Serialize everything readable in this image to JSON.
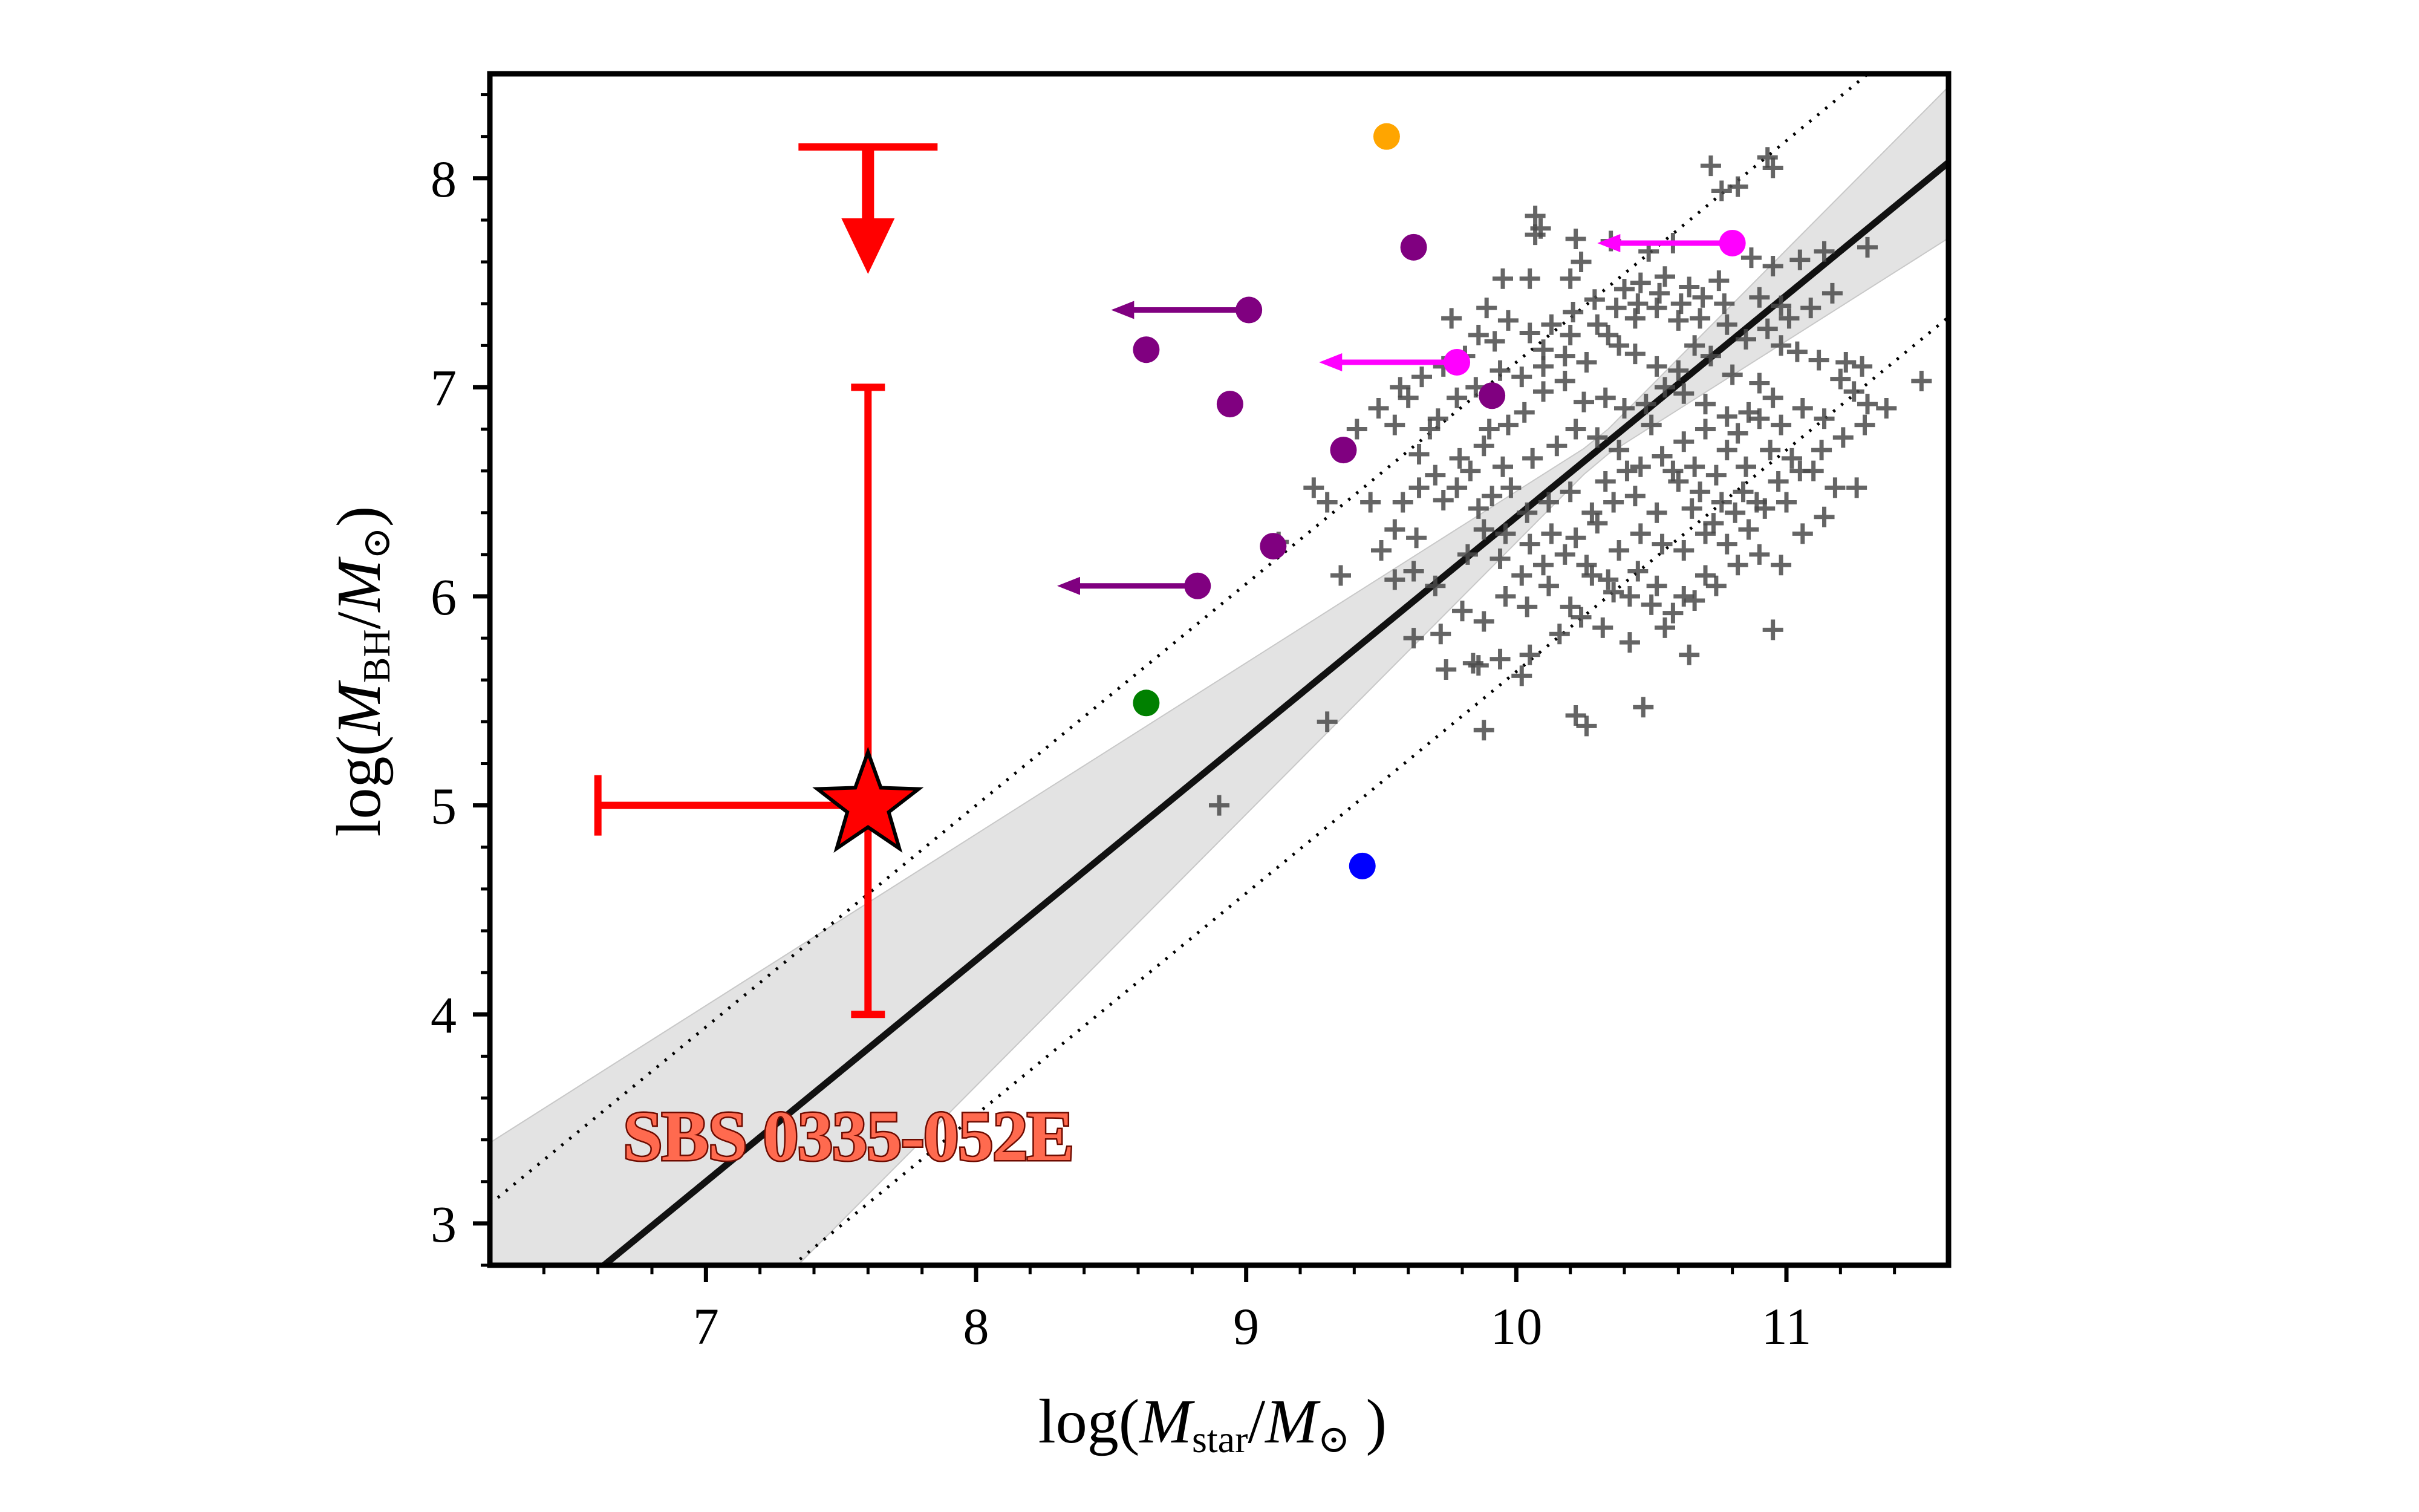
{
  "chart_data": {
    "type": "scatter",
    "xlabel": "log(M_star/M_⊙)",
    "xlabel_parts": {
      "prefix": "log(",
      "var": "M",
      "sub": "star",
      "slash": "/",
      "var2": "M",
      "sun": "⊙",
      "suffix": " )"
    },
    "ylabel": "log(M_BH/M_⊙)",
    "ylabel_parts": {
      "prefix": "log(",
      "var": "M",
      "sub": "BH",
      "slash": "/",
      "var2": "M",
      "sun": "⊙",
      "suffix": ")"
    },
    "xlim": [
      6.2,
      11.6
    ],
    "ylim": [
      2.8,
      8.5
    ],
    "xticks": [
      7,
      8,
      9,
      10,
      11
    ],
    "xtick_labels": [
      "7",
      "8",
      "9",
      "10",
      "11"
    ],
    "yticks": [
      3,
      4,
      5,
      6,
      7,
      8
    ],
    "ytick_labels": [
      "3",
      "4",
      "5",
      "6",
      "7",
      "8"
    ],
    "grid": false,
    "relation": {
      "slope": 1.06,
      "intercept": -4.22,
      "scatter_offset": 0.74,
      "band_pivot": 10.3,
      "band_min": 0.05,
      "band_scale": 0.24
    },
    "target": {
      "label": "SBS 0335-052E",
      "x": 7.6,
      "y": 5.0,
      "x_err_low": 1.0,
      "x_err_high": 0.0,
      "y_low": 4.0,
      "y_high": 7.0,
      "upper_limit_y": 8.15,
      "color": "#ff0000"
    },
    "highlighted_points": [
      {
        "x": 9.52,
        "y": 8.2,
        "color": "#ffa500",
        "upper_limit_x": false
      },
      {
        "x": 9.62,
        "y": 7.67,
        "color": "#800080",
        "upper_limit_x": false
      },
      {
        "x": 9.01,
        "y": 7.37,
        "color": "#800080",
        "upper_limit_x": true,
        "arrow_to": 8.5
      },
      {
        "x": 8.63,
        "y": 7.18,
        "color": "#800080",
        "upper_limit_x": false
      },
      {
        "x": 8.94,
        "y": 6.92,
        "color": "#800080",
        "upper_limit_x": false
      },
      {
        "x": 9.91,
        "y": 6.96,
        "color": "#800080",
        "upper_limit_x": false
      },
      {
        "x": 9.36,
        "y": 6.7,
        "color": "#800080",
        "upper_limit_x": false
      },
      {
        "x": 9.1,
        "y": 6.24,
        "color": "#800080",
        "upper_limit_x": false
      },
      {
        "x": 8.82,
        "y": 6.05,
        "color": "#800080",
        "upper_limit_x": true,
        "arrow_to": 8.3
      },
      {
        "x": 9.78,
        "y": 7.12,
        "color": "#ff00ff",
        "upper_limit_x": true,
        "arrow_to": 9.27
      },
      {
        "x": 10.8,
        "y": 7.69,
        "color": "#ff00ff",
        "upper_limit_x": true,
        "arrow_to": 10.3
      },
      {
        "x": 8.63,
        "y": 5.49,
        "color": "#008000",
        "upper_limit_x": false
      },
      {
        "x": 9.43,
        "y": 4.71,
        "color": "#0000ff",
        "upper_limit_x": false
      }
    ],
    "comparison_sample": [
      [
        10.72,
        8.06
      ],
      [
        10.93,
        8.1
      ],
      [
        10.95,
        8.05
      ],
      [
        10.82,
        7.96
      ],
      [
        10.76,
        7.94
      ],
      [
        10.07,
        7.82
      ],
      [
        10.07,
        7.73
      ],
      [
        10.09,
        7.76
      ],
      [
        10.22,
        7.71
      ],
      [
        10.35,
        7.7
      ],
      [
        10.24,
        7.6
      ],
      [
        10.49,
        7.65
      ],
      [
        10.58,
        7.69
      ],
      [
        10.55,
        7.53
      ],
      [
        10.64,
        7.48
      ],
      [
        10.75,
        7.51
      ],
      [
        10.87,
        7.62
      ],
      [
        10.95,
        7.58
      ],
      [
        11.05,
        7.61
      ],
      [
        11.14,
        7.65
      ],
      [
        11.3,
        7.67
      ],
      [
        10.9,
        7.43
      ],
      [
        10.98,
        7.39
      ],
      [
        10.78,
        7.3
      ],
      [
        10.68,
        7.33
      ],
      [
        10.46,
        7.5
      ],
      [
        10.4,
        7.47
      ],
      [
        10.2,
        7.52
      ],
      [
        9.95,
        7.52
      ],
      [
        10.05,
        7.52
      ],
      [
        9.76,
        7.33
      ],
      [
        9.86,
        7.25
      ],
      [
        9.92,
        7.22
      ],
      [
        10.1,
        7.18
      ],
      [
        10.2,
        7.25
      ],
      [
        10.3,
        7.3
      ],
      [
        10.38,
        7.2
      ],
      [
        10.44,
        7.16
      ],
      [
        10.52,
        7.1
      ],
      [
        10.6,
        7.08
      ],
      [
        10.66,
        7.2
      ],
      [
        10.72,
        7.15
      ],
      [
        10.8,
        7.06
      ],
      [
        10.9,
        7.02
      ],
      [
        10.98,
        7.2
      ],
      [
        11.04,
        7.17
      ],
      [
        11.12,
        7.13
      ],
      [
        11.2,
        7.04
      ],
      [
        11.25,
        6.98
      ],
      [
        11.5,
        7.03
      ],
      [
        11.3,
        6.92
      ],
      [
        10.95,
        6.95
      ],
      [
        10.86,
        6.88
      ],
      [
        10.78,
        6.86
      ],
      [
        10.7,
        6.92
      ],
      [
        10.62,
        6.97
      ],
      [
        10.55,
        7.0
      ],
      [
        10.48,
        6.92
      ],
      [
        10.4,
        6.9
      ],
      [
        10.33,
        6.95
      ],
      [
        10.25,
        6.93
      ],
      [
        10.18,
        7.03
      ],
      [
        10.1,
        6.98
      ],
      [
        10.03,
        6.88
      ],
      [
        9.97,
        6.82
      ],
      [
        9.9,
        6.8
      ],
      [
        9.6,
        6.95
      ],
      [
        9.55,
        6.82
      ],
      [
        9.68,
        6.8
      ],
      [
        9.79,
        6.66
      ],
      [
        9.88,
        6.72
      ],
      [
        9.95,
        6.62
      ],
      [
        10.06,
        6.66
      ],
      [
        10.15,
        6.72
      ],
      [
        10.22,
        6.8
      ],
      [
        10.3,
        6.76
      ],
      [
        10.38,
        6.7
      ],
      [
        10.46,
        6.62
      ],
      [
        10.54,
        6.67
      ],
      [
        10.62,
        6.74
      ],
      [
        10.7,
        6.8
      ],
      [
        10.78,
        6.7
      ],
      [
        10.85,
        6.62
      ],
      [
        10.94,
        6.7
      ],
      [
        11.02,
        6.66
      ],
      [
        11.1,
        6.6
      ],
      [
        11.18,
        6.52
      ],
      [
        11.26,
        6.52
      ],
      [
        11.0,
        6.45
      ],
      [
        10.92,
        6.42
      ],
      [
        10.84,
        6.5
      ],
      [
        10.76,
        6.45
      ],
      [
        10.68,
        6.5
      ],
      [
        10.6,
        6.55
      ],
      [
        10.52,
        6.4
      ],
      [
        10.44,
        6.48
      ],
      [
        10.36,
        6.45
      ],
      [
        10.28,
        6.4
      ],
      [
        10.2,
        6.5
      ],
      [
        10.12,
        6.45
      ],
      [
        10.04,
        6.4
      ],
      [
        9.98,
        6.52
      ],
      [
        9.91,
        6.48
      ],
      [
        9.83,
        6.6
      ],
      [
        9.73,
        6.46
      ],
      [
        9.64,
        6.52
      ],
      [
        9.58,
        6.45
      ],
      [
        9.46,
        6.45
      ],
      [
        9.3,
        6.45
      ],
      [
        9.55,
        6.32
      ],
      [
        9.63,
        6.28
      ],
      [
        9.5,
        6.22
      ],
      [
        9.62,
        6.12
      ],
      [
        9.7,
        6.05
      ],
      [
        9.82,
        6.2
      ],
      [
        9.88,
        6.32
      ],
      [
        9.96,
        6.3
      ],
      [
        10.05,
        6.25
      ],
      [
        10.13,
        6.3
      ],
      [
        10.22,
        6.28
      ],
      [
        10.3,
        6.35
      ],
      [
        10.38,
        6.22
      ],
      [
        10.46,
        6.3
      ],
      [
        10.54,
        6.25
      ],
      [
        10.62,
        6.22
      ],
      [
        10.7,
        6.3
      ],
      [
        10.78,
        6.25
      ],
      [
        10.86,
        6.32
      ],
      [
        10.7,
        6.1
      ],
      [
        10.62,
        6.0
      ],
      [
        10.52,
        6.05
      ],
      [
        10.45,
        6.12
      ],
      [
        10.36,
        6.02
      ],
      [
        10.28,
        6.1
      ],
      [
        10.2,
        5.95
      ],
      [
        10.12,
        6.05
      ],
      [
        10.04,
        5.95
      ],
      [
        9.96,
        6.0
      ],
      [
        9.88,
        5.88
      ],
      [
        9.8,
        5.93
      ],
      [
        9.72,
        5.82
      ],
      [
        9.62,
        5.8
      ],
      [
        9.55,
        6.08
      ],
      [
        9.35,
        6.1
      ],
      [
        9.12,
        6.26
      ],
      [
        9.25,
        6.52
      ],
      [
        9.74,
        5.65
      ],
      [
        9.84,
        5.68
      ],
      [
        9.94,
        5.7
      ],
      [
        10.05,
        5.72
      ],
      [
        10.16,
        5.82
      ],
      [
        10.24,
        5.9
      ],
      [
        10.32,
        5.85
      ],
      [
        10.42,
        5.78
      ],
      [
        10.55,
        5.85
      ],
      [
        10.64,
        5.72
      ],
      [
        10.95,
        5.84
      ],
      [
        10.22,
        5.43
      ],
      [
        10.26,
        5.38
      ],
      [
        10.47,
        5.47
      ],
      [
        9.88,
        5.36
      ],
      [
        9.86,
        5.67
      ],
      [
        9.3,
        5.4
      ],
      [
        8.9,
        5.0
      ],
      [
        10.02,
        5.62
      ],
      [
        10.33,
        6.55
      ],
      [
        10.41,
        6.6
      ],
      [
        10.5,
        6.82
      ],
      [
        10.58,
        6.6
      ],
      [
        10.66,
        6.62
      ],
      [
        10.74,
        6.58
      ],
      [
        10.82,
        6.78
      ],
      [
        10.9,
        6.85
      ],
      [
        10.98,
        6.82
      ],
      [
        11.06,
        6.9
      ],
      [
        11.14,
        6.85
      ],
      [
        11.22,
        7.12
      ],
      [
        11.28,
        7.1
      ],
      [
        10.6,
        7.32
      ],
      [
        10.52,
        7.38
      ],
      [
        10.44,
        7.33
      ],
      [
        10.34,
        7.25
      ],
      [
        10.26,
        7.12
      ],
      [
        10.18,
        7.15
      ],
      [
        10.1,
        7.1
      ],
      [
        10.02,
        7.05
      ],
      [
        9.94,
        7.08
      ],
      [
        9.85,
        7.0
      ],
      [
        9.78,
        6.95
      ],
      [
        9.71,
        6.85
      ],
      [
        9.64,
        6.68
      ],
      [
        9.7,
        6.58
      ],
      [
        9.78,
        6.52
      ],
      [
        9.86,
        6.42
      ],
      [
        9.94,
        6.18
      ],
      [
        10.02,
        6.1
      ],
      [
        10.1,
        6.15
      ],
      [
        10.18,
        6.2
      ],
      [
        10.26,
        6.15
      ],
      [
        10.34,
        6.08
      ],
      [
        10.42,
        6.0
      ],
      [
        10.5,
        5.96
      ],
      [
        10.58,
        5.92
      ],
      [
        10.66,
        5.98
      ],
      [
        10.74,
        6.05
      ],
      [
        10.82,
        6.15
      ],
      [
        10.9,
        6.2
      ],
      [
        10.98,
        6.15
      ],
      [
        11.06,
        6.3
      ],
      [
        11.14,
        6.38
      ],
      [
        10.85,
        7.23
      ],
      [
        10.93,
        7.28
      ],
      [
        11.01,
        7.33
      ],
      [
        11.09,
        7.38
      ],
      [
        11.17,
        7.45
      ],
      [
        10.77,
        7.4
      ],
      [
        10.69,
        7.43
      ],
      [
        10.61,
        7.4
      ],
      [
        10.53,
        7.45
      ],
      [
        10.45,
        7.4
      ],
      [
        10.37,
        7.38
      ],
      [
        10.29,
        7.42
      ],
      [
        10.21,
        7.36
      ],
      [
        10.13,
        7.3
      ],
      [
        10.05,
        7.26
      ],
      [
        9.97,
        7.32
      ],
      [
        9.89,
        7.38
      ],
      [
        9.81,
        7.15
      ],
      [
        9.73,
        7.1
      ],
      [
        9.65,
        7.05
      ],
      [
        9.57,
        7.0
      ],
      [
        9.49,
        6.9
      ],
      [
        9.41,
        6.8
      ],
      [
        10.65,
        6.42
      ],
      [
        10.73,
        6.35
      ],
      [
        10.81,
        6.4
      ],
      [
        10.89,
        6.45
      ],
      [
        10.97,
        6.55
      ],
      [
        11.05,
        6.6
      ],
      [
        11.13,
        6.7
      ],
      [
        11.21,
        6.76
      ],
      [
        11.29,
        6.82
      ],
      [
        11.37,
        6.9
      ]
    ]
  }
}
